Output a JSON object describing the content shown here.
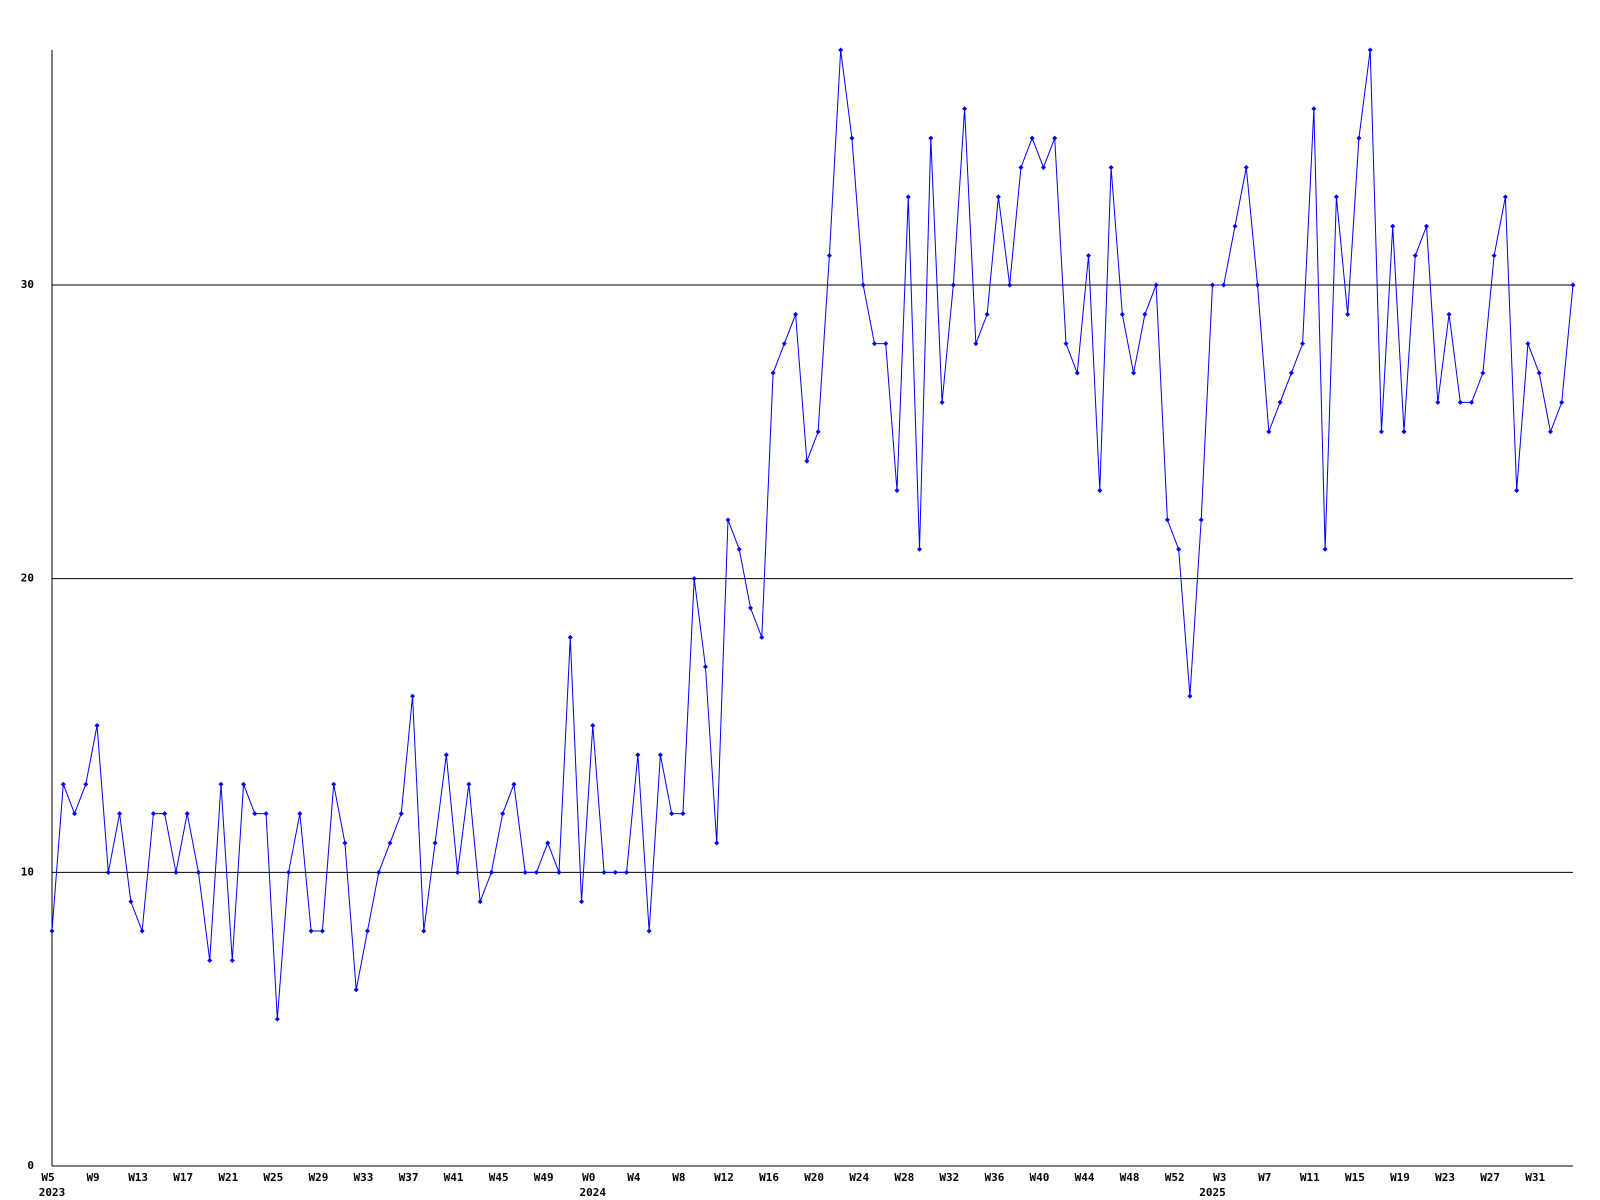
{
  "chart_data": {
    "type": "line",
    "categories": [
      "W5",
      null,
      null,
      null,
      "W9",
      null,
      null,
      null,
      "W13",
      null,
      null,
      null,
      "W17",
      null,
      null,
      null,
      "W21",
      null,
      null,
      null,
      "W25",
      null,
      null,
      null,
      "W29",
      null,
      null,
      null,
      "W33",
      null,
      null,
      null,
      "W37",
      null,
      null,
      null,
      "W41",
      null,
      null,
      null,
      "W45",
      null,
      null,
      null,
      "W49",
      null,
      null,
      null,
      "W0",
      null,
      null,
      null,
      "W4",
      null,
      null,
      null,
      "W8",
      null,
      null,
      null,
      "W12",
      null,
      null,
      null,
      "W16",
      null,
      null,
      null,
      "W20",
      null,
      null,
      null,
      "W24",
      null,
      null,
      null,
      "W28",
      null,
      null,
      null,
      "W32",
      null,
      null,
      null,
      "W36",
      null,
      null,
      null,
      "W40",
      null,
      null,
      null,
      "W44",
      null,
      null,
      null,
      "W48",
      null,
      null,
      null,
      "W52",
      null,
      null,
      null,
      "W3",
      null,
      null,
      null,
      "W7",
      null,
      null,
      null,
      "W11",
      null,
      null,
      null,
      "W15",
      null,
      null,
      null,
      "W19",
      null,
      null,
      null,
      "W23",
      null,
      null,
      null,
      "W27",
      null,
      null,
      null,
      "W31",
      null,
      null,
      null
    ],
    "category_years": [
      "2023",
      null,
      null,
      null,
      null,
      null,
      null,
      null,
      null,
      null,
      null,
      null,
      null,
      null,
      null,
      null,
      null,
      null,
      null,
      null,
      null,
      null,
      null,
      null,
      null,
      null,
      null,
      null,
      null,
      null,
      null,
      null,
      null,
      null,
      null,
      null,
      null,
      null,
      null,
      null,
      null,
      null,
      null,
      null,
      null,
      null,
      null,
      null,
      "2024",
      null,
      null,
      null,
      null,
      null,
      null,
      null,
      null,
      null,
      null,
      null,
      null,
      null,
      null,
      null,
      null,
      null,
      null,
      null,
      null,
      null,
      null,
      null,
      null,
      null,
      null,
      null,
      null,
      null,
      null,
      null,
      null,
      null,
      null,
      null,
      null,
      null,
      null,
      null,
      null,
      null,
      null,
      null,
      null,
      null,
      null,
      null,
      null,
      null,
      null,
      null,
      null,
      null,
      null,
      "2025",
      null,
      null,
      null,
      null,
      null,
      null,
      null,
      null,
      null,
      null,
      null,
      null,
      null,
      null,
      null,
      null,
      null,
      null,
      null,
      null,
      null,
      null,
      null,
      null,
      null,
      null,
      null,
      null,
      null,
      null
    ],
    "series": [
      {
        "color": "#0000ff",
        "values": [
          8,
          13,
          12,
          13,
          15,
          10,
          12,
          9,
          8,
          12,
          12,
          10,
          12,
          10,
          7,
          13,
          7,
          13,
          12,
          12,
          5,
          10,
          12,
          8,
          8,
          13,
          11,
          6,
          8,
          10,
          11,
          12,
          16,
          8,
          11,
          14,
          10,
          13,
          9,
          10,
          12,
          13,
          10,
          10,
          11,
          10,
          18,
          9,
          15,
          10,
          10,
          10,
          14,
          8,
          14,
          12,
          12,
          20,
          17,
          11,
          22,
          21,
          19,
          18,
          27,
          28,
          29,
          24,
          25,
          31,
          38,
          35,
          30,
          28,
          28,
          23,
          33,
          21,
          35,
          26,
          30,
          36,
          28,
          29,
          33,
          30,
          34,
          35,
          34,
          35,
          28,
          27,
          31,
          23,
          34,
          29,
          27,
          29,
          30,
          22,
          21,
          16,
          22,
          30,
          30,
          32,
          34,
          30,
          25,
          26,
          27,
          28,
          36,
          21,
          33,
          29,
          35,
          38,
          25,
          32,
          25,
          31,
          32,
          26,
          29,
          26,
          26,
          27,
          31,
          33,
          23,
          28,
          27,
          25,
          26,
          30
        ]
      }
    ],
    "ylim": [
      0,
      38
    ],
    "yticks": [
      0,
      10,
      20,
      30
    ],
    "grid": true
  }
}
